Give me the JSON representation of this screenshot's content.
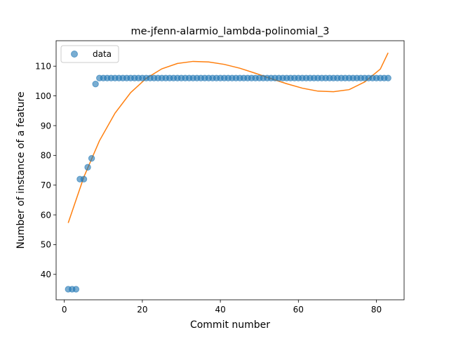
{
  "chart_data": {
    "type": "scatter",
    "title": "me-jfenn-alarmio_lambda-polinomial_3",
    "xlabel": "Commit number",
    "ylabel": "Number of instance of a feature",
    "xlim": [
      -2.1,
      87.1
    ],
    "ylim": [
      31.45,
      118.55
    ],
    "xticks": [
      0,
      20,
      40,
      60,
      80
    ],
    "yticks": [
      40,
      50,
      60,
      70,
      80,
      90,
      100,
      110
    ],
    "grid": false,
    "legend": {
      "placement": "top-left",
      "entries": [
        "data"
      ]
    },
    "colors": {
      "data": "#1f77b4",
      "fit": "#ff7f0e"
    },
    "series": [
      {
        "name": "data",
        "kind": "scatter",
        "x": [
          1,
          2,
          3,
          4,
          5,
          6,
          7,
          8,
          9,
          10,
          11,
          12,
          13,
          14,
          15,
          16,
          17,
          18,
          19,
          20,
          21,
          22,
          23,
          24,
          25,
          26,
          27,
          28,
          29,
          30,
          31,
          32,
          33,
          34,
          35,
          36,
          37,
          38,
          39,
          40,
          41,
          42,
          43,
          44,
          45,
          46,
          47,
          48,
          49,
          50,
          51,
          52,
          53,
          54,
          55,
          56,
          57,
          58,
          59,
          60,
          61,
          62,
          63,
          64,
          65,
          66,
          67,
          68,
          69,
          70,
          71,
          72,
          73,
          74,
          75,
          76,
          77,
          78,
          79,
          80,
          81,
          82,
          83
        ],
        "y": [
          35,
          35,
          35,
          72,
          72,
          76,
          79,
          104,
          106,
          106,
          106,
          106,
          106,
          106,
          106,
          106,
          106,
          106,
          106,
          106,
          106,
          106,
          106,
          106,
          106,
          106,
          106,
          106,
          106,
          106,
          106,
          106,
          106,
          106,
          106,
          106,
          106,
          106,
          106,
          106,
          106,
          106,
          106,
          106,
          106,
          106,
          106,
          106,
          106,
          106,
          106,
          106,
          106,
          106,
          106,
          106,
          106,
          106,
          106,
          106,
          106,
          106,
          106,
          106,
          106,
          106,
          106,
          106,
          106,
          106,
          106,
          106,
          106,
          106,
          106,
          106,
          106,
          106,
          106,
          106,
          106,
          106,
          106
        ]
      },
      {
        "kind": "line",
        "x": [
          1,
          5,
          9,
          13,
          17,
          21,
          25,
          29,
          33,
          37,
          41,
          45,
          49,
          53,
          57,
          61,
          65,
          69,
          73,
          77,
          81,
          83
        ],
        "y": [
          57.3,
          72.7,
          84.9,
          94.2,
          101.1,
          105.9,
          109.1,
          110.9,
          111.6,
          111.4,
          110.6,
          109.3,
          107.6,
          105.8,
          104.1,
          102.6,
          101.6,
          101.4,
          102.1,
          104.7,
          109.0,
          114.5
        ]
      }
    ]
  }
}
